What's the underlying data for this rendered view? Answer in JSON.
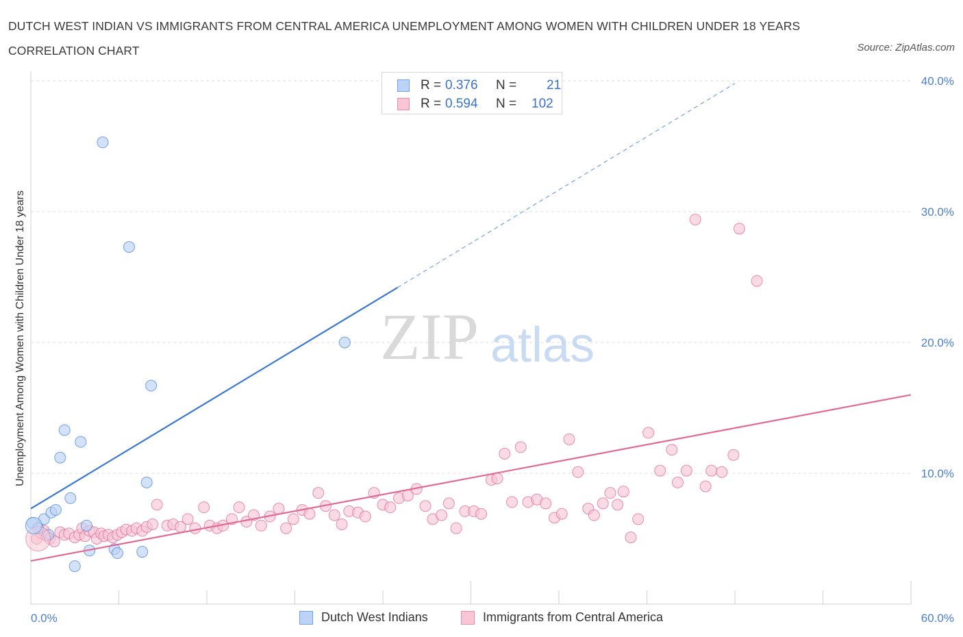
{
  "title": "DUTCH WEST INDIAN VS IMMIGRANTS FROM CENTRAL AMERICA UNEMPLOYMENT AMONG WOMEN WITH CHILDREN UNDER 18 YEARS CORRELATION CHART",
  "source": "Source: ZipAtlas.com",
  "watermark": {
    "zip": "ZIP",
    "atlas": "atlas"
  },
  "stats_legend": {
    "rows": [
      {
        "r_label": "R =",
        "r_value": "0.376",
        "n_label": "N =",
        "n_value": "21",
        "color": "#6fa0e8",
        "fill": "#bcd3f5"
      },
      {
        "r_label": "R =",
        "r_value": "0.594",
        "n_label": "N =",
        "n_value": "102",
        "color": "#ec8aa8",
        "fill": "#f8c6d5"
      }
    ]
  },
  "bottom_legend": [
    {
      "label": "Dutch West Indians",
      "color": "#6fa0e8",
      "fill": "#bcd3f5"
    },
    {
      "label": "Immigrants from Central America",
      "color": "#ec8aa8",
      "fill": "#f8c6d5"
    }
  ],
  "chart_data": {
    "type": "scatter",
    "ylabel": "Unemployment Among Women with Children Under 18 years",
    "xlim": [
      0,
      60
    ],
    "ylim": [
      0,
      40
    ],
    "x_tick_labels": [
      "0.0%",
      "60.0%"
    ],
    "y_ticks": [
      10,
      20,
      30,
      40
    ],
    "y_tick_labels": [
      "10.0%",
      "20.0%",
      "30.0%",
      "40.0%"
    ],
    "grid": true,
    "series": [
      {
        "name": "Dutch West Indians",
        "color": "#4a86d8",
        "fill": "#bcd3f5",
        "trend": {
          "x0": 0,
          "y0": 7.3,
          "x1": 25,
          "y1": 24.2,
          "dashed_to_x": 48,
          "dashed_to_y": 39.8
        },
        "points": [
          [
            0.1,
            6.2
          ],
          [
            0.5,
            5.8
          ],
          [
            0.9,
            6.5
          ],
          [
            1.2,
            5.3
          ],
          [
            1.4,
            7.0
          ],
          [
            1.7,
            7.2
          ],
          [
            2.0,
            11.2
          ],
          [
            2.3,
            13.3
          ],
          [
            2.7,
            8.1
          ],
          [
            3.0,
            2.9
          ],
          [
            3.4,
            12.4
          ],
          [
            3.8,
            6.0
          ],
          [
            4.0,
            4.1
          ],
          [
            4.9,
            35.3
          ],
          [
            5.7,
            4.2
          ],
          [
            5.9,
            3.9
          ],
          [
            6.7,
            27.3
          ],
          [
            7.6,
            4.0
          ],
          [
            7.9,
            9.3
          ],
          [
            8.2,
            16.7
          ],
          [
            21.4,
            20.0
          ]
        ]
      },
      {
        "name": "Immigrants from Central America",
        "color": "#e06a93",
        "fill": "#f8c6d5",
        "trend": {
          "x0": 0,
          "y0": 3.3,
          "x1": 60,
          "y1": 16.0
        },
        "points": [
          [
            0.4,
            5.0
          ],
          [
            0.7,
            5.4
          ],
          [
            0.9,
            5.6
          ],
          [
            1.1,
            5.2
          ],
          [
            1.3,
            5.0
          ],
          [
            1.6,
            4.8
          ],
          [
            2.0,
            5.5
          ],
          [
            2.3,
            5.3
          ],
          [
            2.6,
            5.4
          ],
          [
            3.0,
            5.1
          ],
          [
            3.3,
            5.3
          ],
          [
            3.5,
            5.8
          ],
          [
            3.7,
            5.2
          ],
          [
            4.0,
            5.6
          ],
          [
            4.3,
            5.5
          ],
          [
            4.5,
            5.0
          ],
          [
            4.8,
            5.4
          ],
          [
            5.0,
            5.2
          ],
          [
            5.3,
            5.3
          ],
          [
            5.6,
            5.1
          ],
          [
            5.9,
            5.3
          ],
          [
            6.2,
            5.5
          ],
          [
            6.5,
            5.7
          ],
          [
            6.9,
            5.6
          ],
          [
            7.2,
            5.8
          ],
          [
            7.6,
            5.6
          ],
          [
            7.9,
            5.9
          ],
          [
            8.3,
            6.1
          ],
          [
            8.6,
            7.6
          ],
          [
            9.3,
            6.0
          ],
          [
            9.7,
            6.1
          ],
          [
            10.2,
            5.9
          ],
          [
            10.7,
            6.5
          ],
          [
            11.2,
            5.8
          ],
          [
            11.8,
            7.4
          ],
          [
            12.2,
            6.0
          ],
          [
            12.7,
            5.8
          ],
          [
            13.1,
            6.0
          ],
          [
            13.7,
            6.5
          ],
          [
            14.2,
            7.4
          ],
          [
            14.7,
            6.3
          ],
          [
            15.2,
            6.8
          ],
          [
            15.7,
            6.0
          ],
          [
            16.3,
            6.7
          ],
          [
            16.9,
            7.3
          ],
          [
            17.4,
            5.8
          ],
          [
            17.9,
            6.5
          ],
          [
            18.5,
            7.2
          ],
          [
            19.0,
            6.9
          ],
          [
            19.6,
            8.5
          ],
          [
            20.1,
            7.5
          ],
          [
            20.7,
            6.8
          ],
          [
            21.2,
            6.1
          ],
          [
            21.7,
            7.1
          ],
          [
            22.3,
            7.0
          ],
          [
            22.8,
            6.7
          ],
          [
            23.4,
            8.5
          ],
          [
            24.0,
            7.6
          ],
          [
            24.5,
            7.4
          ],
          [
            25.1,
            8.1
          ],
          [
            25.7,
            8.3
          ],
          [
            26.3,
            8.8
          ],
          [
            26.9,
            7.5
          ],
          [
            27.4,
            6.5
          ],
          [
            28.0,
            6.8
          ],
          [
            28.5,
            7.7
          ],
          [
            29.0,
            5.8
          ],
          [
            29.6,
            7.1
          ],
          [
            30.2,
            7.1
          ],
          [
            30.7,
            6.9
          ],
          [
            31.4,
            9.5
          ],
          [
            31.8,
            9.6
          ],
          [
            32.3,
            11.5
          ],
          [
            32.8,
            7.8
          ],
          [
            33.4,
            12.0
          ],
          [
            33.9,
            7.8
          ],
          [
            34.5,
            8.0
          ],
          [
            35.1,
            7.7
          ],
          [
            35.7,
            6.6
          ],
          [
            36.2,
            6.9
          ],
          [
            36.7,
            12.6
          ],
          [
            37.3,
            10.1
          ],
          [
            38.0,
            7.3
          ],
          [
            38.4,
            6.8
          ],
          [
            39.0,
            7.7
          ],
          [
            39.5,
            8.5
          ],
          [
            40.0,
            7.6
          ],
          [
            40.4,
            8.6
          ],
          [
            40.9,
            5.1
          ],
          [
            41.4,
            6.5
          ],
          [
            42.1,
            13.1
          ],
          [
            42.9,
            10.2
          ],
          [
            43.7,
            11.8
          ],
          [
            44.1,
            9.3
          ],
          [
            44.7,
            10.2
          ],
          [
            45.3,
            29.4
          ],
          [
            46.0,
            9.0
          ],
          [
            46.4,
            10.2
          ],
          [
            47.1,
            10.1
          ],
          [
            47.9,
            11.4
          ],
          [
            48.3,
            28.7
          ],
          [
            49.5,
            24.7
          ]
        ]
      }
    ]
  }
}
